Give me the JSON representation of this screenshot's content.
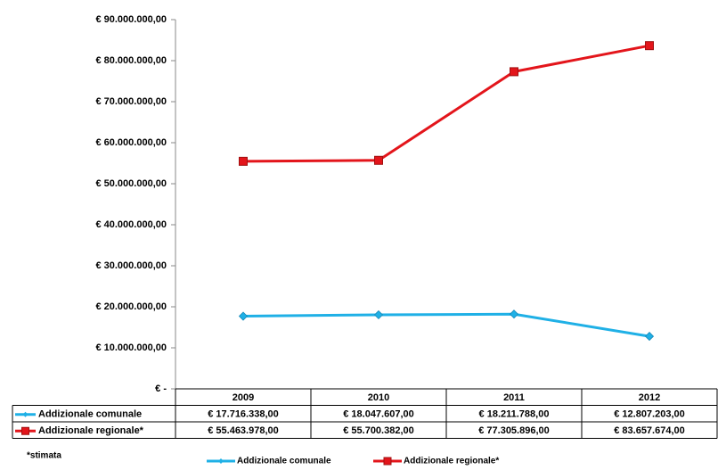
{
  "chart_data": {
    "type": "line",
    "categories": [
      "2009",
      "2010",
      "2011",
      "2012"
    ],
    "series": [
      {
        "name": "Addizionale comunale",
        "color": "#1fb0e6",
        "marker": "diamond",
        "values": [
          17716338,
          18047607,
          18211788,
          12807203
        ],
        "value_labels": [
          "€ 17.716.338,00",
          "€ 18.047.607,00",
          "€ 18.211.788,00",
          "€ 12.807.203,00"
        ]
      },
      {
        "name": "Addizionale regionale*",
        "color": "#e3151b",
        "marker": "square",
        "values": [
          55463978,
          55700382,
          77305896,
          83657674
        ],
        "value_labels": [
          "€ 55.463.978,00",
          "€ 55.700.382,00",
          "€ 77.305.896,00",
          "€ 83.657.674,00"
        ]
      }
    ],
    "ylim": [
      0,
      90000000
    ],
    "yticks": [
      {
        "value": 0,
        "label": "€ -"
      },
      {
        "value": 10000000,
        "label": "€ 10.000.000,00"
      },
      {
        "value": 20000000,
        "label": "€ 20.000.000,00"
      },
      {
        "value": 30000000,
        "label": "€ 30.000.000,00"
      },
      {
        "value": 40000000,
        "label": "€ 40.000.000,00"
      },
      {
        "value": 50000000,
        "label": "€ 50.000.000,00"
      },
      {
        "value": 60000000,
        "label": "€ 60.000.000,00"
      },
      {
        "value": 70000000,
        "label": "€ 70.000.000,00"
      },
      {
        "value": 80000000,
        "label": "€ 80.000.000,00"
      },
      {
        "value": 90000000,
        "label": "€ 90.000.000,00"
      }
    ],
    "grid": false,
    "note": "*stimata"
  }
}
